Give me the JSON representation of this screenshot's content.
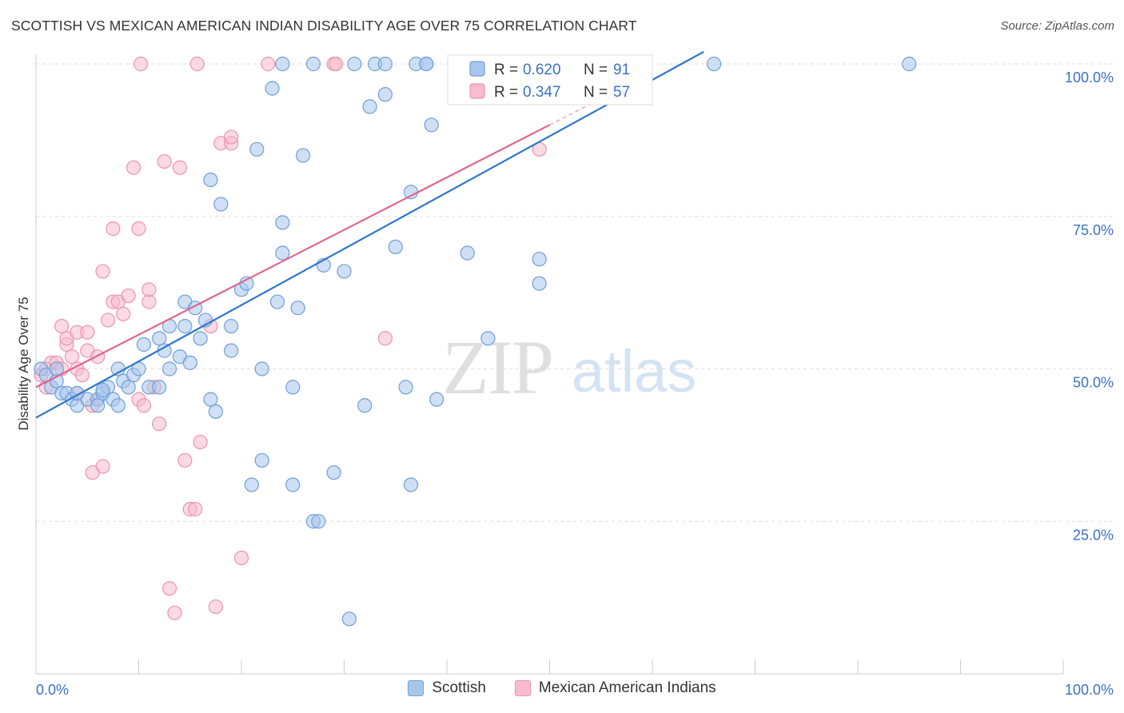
{
  "header": {
    "title": "SCOTTISH VS MEXICAN AMERICAN INDIAN DISABILITY AGE OVER 75 CORRELATION CHART",
    "source": "Source: ZipAtlas.com"
  },
  "watermark": {
    "zip": "ZIP",
    "atlas": "atlas"
  },
  "legend_box": {
    "rows": [
      {
        "r_label": "R =",
        "r_value": "0.620",
        "n_label": "N =",
        "n_value": "91"
      },
      {
        "r_label": "R =",
        "r_value": "0.347",
        "n_label": "N =",
        "n_value": "57"
      }
    ]
  },
  "legend_bottom": [
    {
      "label": "Scottish"
    },
    {
      "label": "Mexican American Indians"
    }
  ],
  "colors": {
    "blue_fill": "#a8c6ec",
    "blue_stroke": "#6f9ed8",
    "blue_line": "#2f76cc",
    "pink_fill": "#f7bccd",
    "pink_stroke": "#ec93ae",
    "pink_line": "#e0668c",
    "accent_text": "#3a72c4",
    "grid": "#dddddd"
  },
  "chart_data": {
    "type": "scatter",
    "title": "SCOTTISH VS MEXICAN AMERICAN INDIAN DISABILITY AGE OVER 75 CORRELATION CHART",
    "xlabel": "",
    "ylabel": "Disability Age Over 75",
    "xlim": [
      0,
      100
    ],
    "ylim": [
      0,
      100
    ],
    "x_tick_labels": [
      "0.0%",
      "100.0%"
    ],
    "y_tick_labels": [
      "25.0%",
      "50.0%",
      "75.0%",
      "100.0%"
    ],
    "y_ticks": [
      25,
      50,
      75,
      100
    ],
    "grid": true,
    "legend_position": "top-center",
    "series": [
      {
        "name": "Scottish",
        "r": 0.62,
        "n": 91,
        "trend": {
          "x": [
            0,
            65
          ],
          "y": [
            42,
            102
          ]
        },
        "points": [
          [
            0.5,
            50
          ],
          [
            1,
            49
          ],
          [
            1.5,
            47
          ],
          [
            2,
            48
          ],
          [
            2.5,
            46
          ],
          [
            3,
            46
          ],
          [
            3.5,
            45
          ],
          [
            4,
            44
          ],
          [
            5,
            45
          ],
          [
            6,
            45
          ],
          [
            6.5,
            46
          ],
          [
            7,
            47
          ],
          [
            7.5,
            45
          ],
          [
            8,
            44
          ],
          [
            8,
            50
          ],
          [
            8.5,
            48
          ],
          [
            9,
            47
          ],
          [
            9.5,
            49
          ],
          [
            10,
            50
          ],
          [
            10.5,
            54
          ],
          [
            11,
            47
          ],
          [
            12,
            55
          ],
          [
            12.5,
            53
          ],
          [
            13,
            57
          ],
          [
            13,
            50
          ],
          [
            14,
            52
          ],
          [
            14.5,
            57
          ],
          [
            14.5,
            61
          ],
          [
            15,
            51
          ],
          [
            15.5,
            60
          ],
          [
            16,
            55
          ],
          [
            16.5,
            58
          ],
          [
            17,
            45
          ],
          [
            17.5,
            43
          ],
          [
            17,
            81
          ],
          [
            18,
            77
          ],
          [
            19,
            57
          ],
          [
            19,
            53
          ],
          [
            20,
            63
          ],
          [
            20.5,
            64
          ],
          [
            21,
            31
          ],
          [
            21.5,
            86
          ],
          [
            22,
            35
          ],
          [
            22,
            50
          ],
          [
            23,
            96
          ],
          [
            23.5,
            61
          ],
          [
            24,
            69
          ],
          [
            24,
            74
          ],
          [
            25,
            47
          ],
          [
            25,
            31
          ],
          [
            25.5,
            60
          ],
          [
            26,
            85
          ],
          [
            27,
            25
          ],
          [
            27.5,
            25
          ],
          [
            28,
            67
          ],
          [
            29,
            33
          ],
          [
            30,
            66
          ],
          [
            30.5,
            9
          ],
          [
            32,
            44
          ],
          [
            32.5,
            93
          ],
          [
            33,
            100
          ],
          [
            34,
            95
          ],
          [
            35,
            70
          ],
          [
            36,
            47
          ],
          [
            36.5,
            79
          ],
          [
            36.5,
            31
          ],
          [
            37,
            100
          ],
          [
            38,
            100
          ],
          [
            38.5,
            90
          ],
          [
            39,
            45
          ],
          [
            42,
            69
          ],
          [
            44,
            55
          ],
          [
            47,
            100
          ],
          [
            49,
            68
          ],
          [
            49,
            64
          ],
          [
            66,
            100
          ],
          [
            85,
            100
          ],
          [
            2,
            50
          ],
          [
            4,
            46
          ],
          [
            6,
            44
          ],
          [
            12,
            47
          ],
          [
            24,
            100
          ],
          [
            27,
            100
          ],
          [
            31,
            100
          ],
          [
            34,
            100
          ],
          [
            38,
            100
          ],
          [
            41,
            100
          ],
          [
            45,
            100
          ],
          [
            50,
            100
          ],
          [
            58,
            100
          ],
          [
            6.5,
            46.5
          ]
        ]
      },
      {
        "name": "Mexican American Indians",
        "r": 0.347,
        "n": 57,
        "trend": {
          "x": [
            0,
            50
          ],
          "y": [
            47,
            90
          ]
        },
        "points": [
          [
            0.5,
            49
          ],
          [
            1,
            50
          ],
          [
            1.5,
            51
          ],
          [
            2,
            51
          ],
          [
            2.5,
            50
          ],
          [
            3,
            54
          ],
          [
            2.5,
            57
          ],
          [
            3,
            55
          ],
          [
            3.5,
            52
          ],
          [
            4,
            56
          ],
          [
            4,
            50
          ],
          [
            4.5,
            49
          ],
          [
            5,
            53
          ],
          [
            5,
            56
          ],
          [
            5.5,
            44
          ],
          [
            6,
            52
          ],
          [
            6,
            45
          ],
          [
            6.5,
            34
          ],
          [
            6.5,
            66
          ],
          [
            7,
            58
          ],
          [
            7.5,
            73
          ],
          [
            7.5,
            61
          ],
          [
            8,
            61
          ],
          [
            8.5,
            59
          ],
          [
            9,
            62
          ],
          [
            9.5,
            83
          ],
          [
            10,
            73
          ],
          [
            10,
            45
          ],
          [
            10.5,
            44
          ],
          [
            11,
            61
          ],
          [
            11,
            63
          ],
          [
            11.5,
            47
          ],
          [
            12,
            41
          ],
          [
            12.5,
            84
          ],
          [
            13,
            14
          ],
          [
            13.5,
            10
          ],
          [
            14,
            83
          ],
          [
            14.5,
            35
          ],
          [
            15,
            27
          ],
          [
            15.5,
            27
          ],
          [
            16,
            38
          ],
          [
            17,
            57
          ],
          [
            17.5,
            11
          ],
          [
            18,
            87
          ],
          [
            19,
            87
          ],
          [
            19,
            88
          ],
          [
            20,
            19
          ],
          [
            10.2,
            100
          ],
          [
            15.7,
            100
          ],
          [
            22.6,
            100
          ],
          [
            29,
            100
          ],
          [
            29.2,
            100
          ],
          [
            34,
            55
          ],
          [
            49,
            86
          ],
          [
            5.5,
            33
          ],
          [
            4,
            46
          ],
          [
            1,
            47
          ]
        ]
      }
    ]
  }
}
